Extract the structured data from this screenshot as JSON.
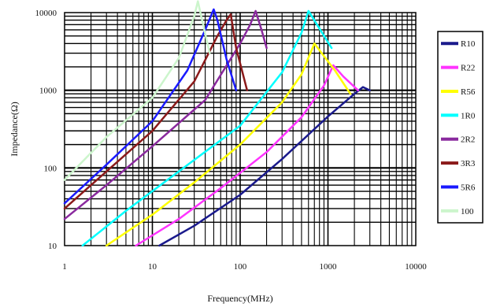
{
  "chart_data": {
    "type": "line",
    "xlabel": "Frequency(MHz)",
    "ylabel": "Impedance(Ω)",
    "xscale": "log",
    "yscale": "log",
    "xlim": [
      1,
      10000
    ],
    "ylim": [
      10,
      10000
    ],
    "grid": true,
    "legend_position": "right",
    "x_ticks": [
      1,
      10,
      100,
      1000,
      10000
    ],
    "y_ticks": [
      10,
      100,
      1000,
      10000
    ],
    "x_tick_labels": [
      "1",
      "10",
      "100",
      "1000",
      "10000"
    ],
    "y_tick_labels": [
      "10",
      "100",
      "1000",
      "10000"
    ],
    "series": [
      {
        "name": "R10",
        "color": "#1a1a8c",
        "x": [
          12,
          30,
          100,
          300,
          1000,
          2000,
          2500,
          3000
        ],
        "y": [
          10,
          18,
          45,
          130,
          460,
          900,
          1100,
          1000
        ]
      },
      {
        "name": "R22",
        "color": "#ff33ff",
        "x": [
          6.5,
          20,
          60,
          200,
          500,
          900,
          1150,
          1500,
          2200
        ],
        "y": [
          10,
          22,
          55,
          160,
          450,
          1150,
          2100,
          1500,
          1000
        ]
      },
      {
        "name": "R56",
        "color": "#ffff00",
        "x": [
          3,
          10,
          30,
          100,
          300,
          500,
          700,
          1200,
          1800
        ],
        "y": [
          10,
          25,
          65,
          200,
          700,
          1600,
          4000,
          1800,
          900
        ]
      },
      {
        "name": "1R0",
        "color": "#00ffff",
        "x": [
          1.6,
          5,
          20,
          100,
          300,
          500,
          600,
          750,
          1100
        ],
        "y": [
          10,
          28,
          90,
          350,
          1700,
          5500,
          10500,
          7000,
          3500
        ]
      },
      {
        "name": "2R2",
        "color": "#8a2a9e",
        "x": [
          1,
          3,
          10,
          40,
          100,
          130,
          150,
          175,
          200
        ],
        "y": [
          22,
          60,
          190,
          750,
          4000,
          7000,
          10500,
          6000,
          3500
        ]
      },
      {
        "name": "3R3",
        "color": "#8b1a1a",
        "x": [
          1,
          3,
          10,
          30,
          55,
          70,
          78,
          90,
          120
        ],
        "y": [
          30,
          90,
          300,
          1300,
          5000,
          8000,
          9500,
          3500,
          1000
        ]
      },
      {
        "name": "5R6",
        "color": "#1a1aff",
        "x": [
          1,
          3,
          10,
          25,
          40,
          50,
          55,
          70,
          90
        ],
        "y": [
          35,
          110,
          400,
          1800,
          6000,
          11000,
          8000,
          2500,
          1000
        ]
      },
      {
        "name": "100",
        "color": "#ccf5cc",
        "x": [
          1,
          3,
          10,
          20,
          30,
          33,
          36,
          45
        ],
        "y": [
          70,
          250,
          800,
          2600,
          9000,
          14000,
          9000,
          3000
        ]
      }
    ]
  }
}
